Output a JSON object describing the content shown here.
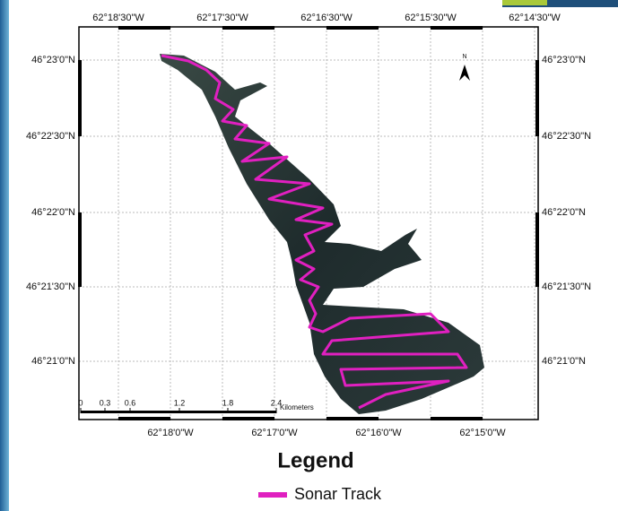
{
  "top_labels": [
    "62°18'30\"W",
    "62°17'30\"W",
    "62°16'30\"W",
    "62°15'30\"W",
    "62°14'30\"W"
  ],
  "bottom_labels": [
    "62°18'0\"W",
    "62°17'0\"W",
    "62°16'0\"W",
    "62°15'0\"W"
  ],
  "left_labels": [
    "46°23'0\"N",
    "46°22'30\"N",
    "46°22'0\"N",
    "46°21'30\"N",
    "46°21'0\"N"
  ],
  "right_labels": [
    "46°23'0\"N",
    "46°22'30\"N",
    "46°22'0\"N",
    "46°21'30\"N",
    "46°21'0\"N"
  ],
  "north_label": "N",
  "scale_bar": {
    "ticks": [
      "0",
      "0.3",
      "0.6",
      "1.2",
      "1.8",
      "2.4"
    ],
    "unit": "Kilometers"
  },
  "legend": {
    "title": "Legend",
    "items": [
      {
        "label": "Sonar Track",
        "color": "#e020c0"
      }
    ]
  }
}
